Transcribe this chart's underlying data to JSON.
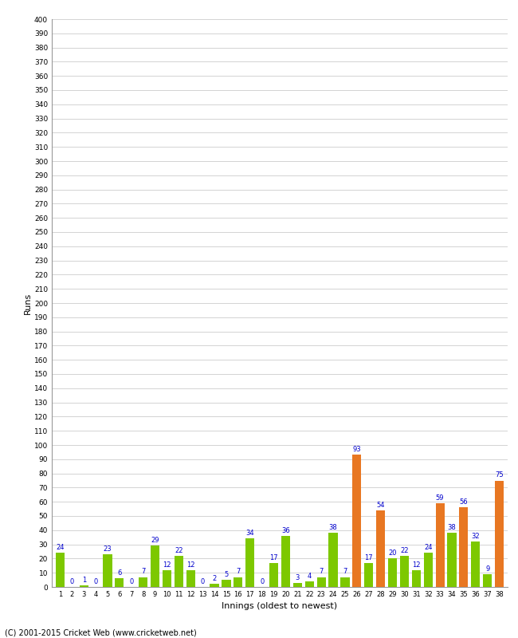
{
  "innings": [
    1,
    2,
    3,
    4,
    5,
    6,
    7,
    8,
    9,
    10,
    11,
    12,
    13,
    14,
    15,
    16,
    17,
    18,
    19,
    20,
    21,
    22,
    23,
    24,
    25,
    26,
    27,
    28,
    29,
    30,
    31,
    32,
    33,
    34,
    35,
    36,
    37,
    38
  ],
  "values": [
    24,
    0,
    1,
    0,
    23,
    6,
    0,
    7,
    29,
    12,
    22,
    12,
    0,
    2,
    5,
    7,
    34,
    0,
    17,
    36,
    3,
    4,
    7,
    38,
    7,
    93,
    17,
    54,
    20,
    22,
    12,
    24,
    59,
    38,
    56,
    32,
    9,
    75
  ],
  "colors": [
    "#7dc800",
    "#7dc800",
    "#7dc800",
    "#7dc800",
    "#7dc800",
    "#7dc800",
    "#7dc800",
    "#7dc800",
    "#7dc800",
    "#7dc800",
    "#7dc800",
    "#7dc800",
    "#7dc800",
    "#7dc800",
    "#7dc800",
    "#7dc800",
    "#7dc800",
    "#7dc800",
    "#7dc800",
    "#7dc800",
    "#7dc800",
    "#7dc800",
    "#7dc800",
    "#7dc800",
    "#7dc800",
    "#e87722",
    "#7dc800",
    "#e87722",
    "#7dc800",
    "#7dc800",
    "#7dc800",
    "#7dc800",
    "#e87722",
    "#7dc800",
    "#e87722",
    "#7dc800",
    "#7dc800",
    "#e87722"
  ],
  "xlabel": "Innings (oldest to newest)",
  "ylabel": "Runs",
  "ylim": [
    0,
    400
  ],
  "yticks": [
    0,
    10,
    20,
    30,
    40,
    50,
    60,
    70,
    80,
    90,
    100,
    110,
    120,
    130,
    140,
    150,
    160,
    170,
    180,
    190,
    200,
    210,
    220,
    230,
    240,
    250,
    260,
    270,
    280,
    290,
    300,
    310,
    320,
    330,
    340,
    350,
    360,
    370,
    380,
    390,
    400
  ],
  "label_color": "#0000cc",
  "bar_width": 0.75,
  "background_color": "#ffffff",
  "grid_color": "#cccccc",
  "footer": "(C) 2001-2015 Cricket Web (www.cricketweb.net)"
}
